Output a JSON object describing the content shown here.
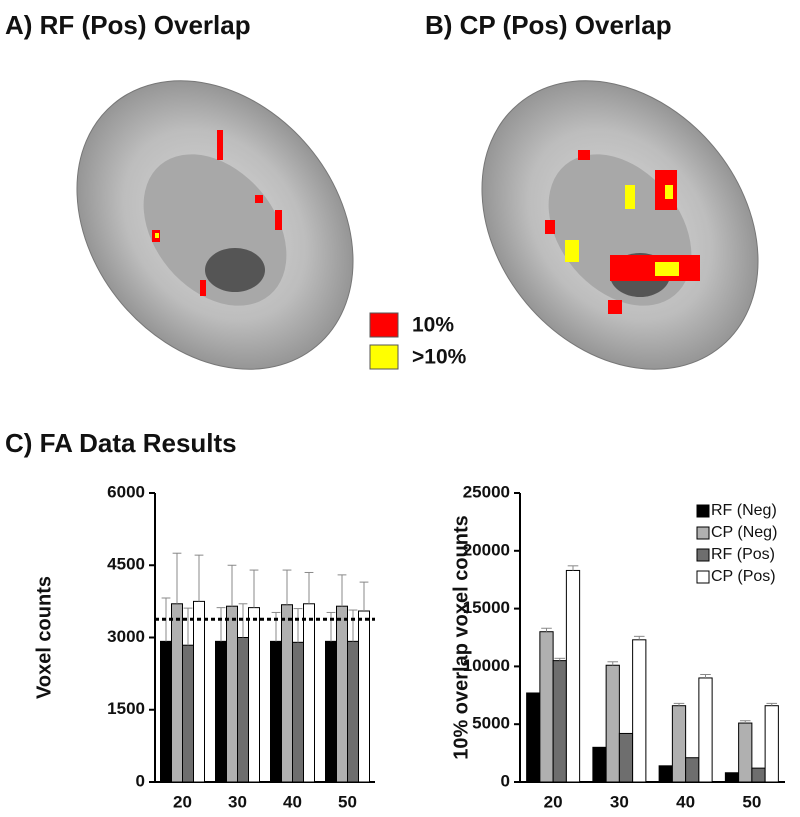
{
  "panels": {
    "a_title": "A) RF (Pos) Overlap",
    "b_title": "B) CP (Pos) Overlap",
    "c_title": "C) FA Data Results"
  },
  "overlap_legend": [
    {
      "label": "10%",
      "color": "#ff0000"
    },
    {
      "label": ">10%",
      "color": "#ffff00"
    }
  ],
  "chart_data": [
    {
      "type": "bar",
      "y_label": "Voxel counts",
      "categories": [
        "20",
        "30",
        "40",
        "50"
      ],
      "ylim": [
        0,
        6000
      ],
      "yticks": [
        0,
        1500,
        3000,
        4500,
        6000
      ],
      "legend": false,
      "reference_line": 3380,
      "series": [
        {
          "name": "RF (Neg)",
          "color": "#000000",
          "values": [
            2920,
            2920,
            2920,
            2920
          ],
          "errors": [
            900,
            700,
            600,
            600
          ]
        },
        {
          "name": "CP (Neg)",
          "color": "#b0b0b0",
          "values": [
            3700,
            3650,
            3680,
            3650
          ],
          "errors": [
            1050,
            850,
            720,
            650
          ]
        },
        {
          "name": "RF (Pos)",
          "color": "#6e6e6e",
          "values": [
            2840,
            3000,
            2900,
            2920
          ],
          "errors": [
            770,
            700,
            700,
            650
          ]
        },
        {
          "name": "CP (Pos)",
          "color": "#ffffff",
          "values": [
            3750,
            3620,
            3700,
            3550
          ],
          "errors": [
            960,
            780,
            650,
            600
          ]
        }
      ]
    },
    {
      "type": "bar",
      "y_label": "10% overlap voxel counts",
      "categories": [
        "20",
        "30",
        "40",
        "50"
      ],
      "ylim": [
        0,
        25000
      ],
      "yticks": [
        0,
        5000,
        10000,
        15000,
        20000,
        25000
      ],
      "legend": true,
      "series": [
        {
          "name": "RF (Neg)",
          "color": "#000000",
          "values": [
            7700,
            3000,
            1400,
            800
          ],
          "errors": [
            0,
            0,
            0,
            0
          ]
        },
        {
          "name": "CP (Neg)",
          "color": "#b0b0b0",
          "values": [
            13000,
            10100,
            6600,
            5100
          ],
          "errors": [
            300,
            300,
            200,
            200
          ]
        },
        {
          "name": "RF (Pos)",
          "color": "#6e6e6e",
          "values": [
            10500,
            4200,
            2100,
            1200
          ],
          "errors": [
            200,
            0,
            0,
            0
          ]
        },
        {
          "name": "CP (Pos)",
          "color": "#ffffff",
          "values": [
            18300,
            12300,
            9000,
            6600
          ],
          "errors": [
            400,
            300,
            300,
            200
          ]
        }
      ]
    }
  ]
}
